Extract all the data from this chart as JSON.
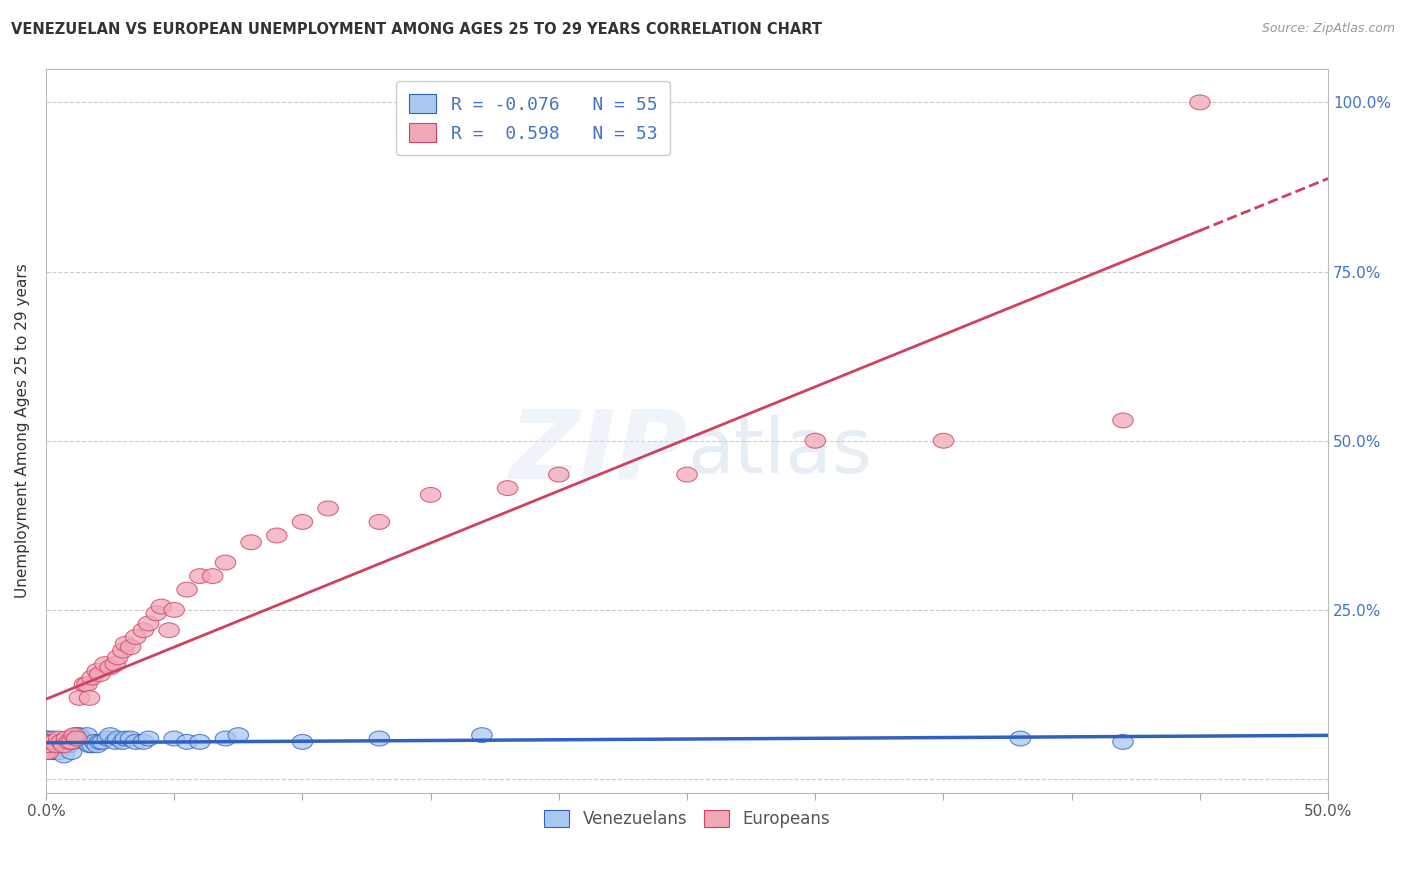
{
  "title": "VENEZUELAN VS EUROPEAN UNEMPLOYMENT AMONG AGES 25 TO 29 YEARS CORRELATION CHART",
  "source": "Source: ZipAtlas.com",
  "ylabel": "Unemployment Among Ages 25 to 29 years",
  "xlim": [
    0.0,
    0.5
  ],
  "ylim": [
    -0.02,
    1.05
  ],
  "xticks": [
    0.0,
    0.05,
    0.1,
    0.15,
    0.2,
    0.25,
    0.3,
    0.35,
    0.4,
    0.45,
    0.5
  ],
  "xticklabels": [
    "0.0%",
    "",
    "",
    "",
    "",
    "",
    "",
    "",
    "",
    "",
    "50.0%"
  ],
  "ytick_positions": [
    0.0,
    0.25,
    0.5,
    0.75,
    1.0
  ],
  "yticklabels": [
    "",
    "25.0%",
    "50.0%",
    "75.0%",
    "100.0%"
  ],
  "legend_labels": [
    "Venezuelans",
    "Europeans"
  ],
  "venezuelan_color": "#a8c8f0",
  "european_color": "#f0a8b8",
  "venezuelan_R": -0.076,
  "venezuelan_N": 55,
  "european_R": 0.598,
  "european_N": 53,
  "background_color": "#ffffff",
  "grid_color": "#cccccc",
  "venezuelan_line_color": "#3060c0",
  "european_line_color": "#d04060",
  "venezuelan_x": [
    0.0,
    0.0,
    0.0,
    0.0,
    0.001,
    0.001,
    0.001,
    0.002,
    0.002,
    0.003,
    0.003,
    0.003,
    0.004,
    0.005,
    0.005,
    0.006,
    0.007,
    0.007,
    0.008,
    0.009,
    0.009,
    0.01,
    0.01,
    0.011,
    0.012,
    0.013,
    0.014,
    0.015,
    0.016,
    0.017,
    0.018,
    0.019,
    0.02,
    0.021,
    0.022,
    0.024,
    0.025,
    0.027,
    0.028,
    0.03,
    0.031,
    0.033,
    0.035,
    0.038,
    0.04,
    0.05,
    0.055,
    0.06,
    0.07,
    0.075,
    0.1,
    0.13,
    0.17,
    0.38,
    0.42
  ],
  "venezuelan_y": [
    0.04,
    0.05,
    0.055,
    0.06,
    0.04,
    0.05,
    0.06,
    0.04,
    0.055,
    0.04,
    0.05,
    0.06,
    0.055,
    0.04,
    0.05,
    0.055,
    0.035,
    0.05,
    0.055,
    0.05,
    0.06,
    0.04,
    0.055,
    0.06,
    0.065,
    0.065,
    0.06,
    0.055,
    0.065,
    0.05,
    0.05,
    0.055,
    0.05,
    0.055,
    0.055,
    0.06,
    0.065,
    0.055,
    0.06,
    0.055,
    0.06,
    0.06,
    0.055,
    0.055,
    0.06,
    0.06,
    0.055,
    0.055,
    0.06,
    0.065,
    0.055,
    0.06,
    0.065,
    0.06,
    0.055
  ],
  "european_x": [
    0.0,
    0.0,
    0.001,
    0.001,
    0.002,
    0.003,
    0.004,
    0.005,
    0.006,
    0.007,
    0.008,
    0.009,
    0.01,
    0.011,
    0.012,
    0.013,
    0.015,
    0.016,
    0.017,
    0.018,
    0.02,
    0.021,
    0.023,
    0.025,
    0.027,
    0.028,
    0.03,
    0.031,
    0.033,
    0.035,
    0.038,
    0.04,
    0.043,
    0.045,
    0.048,
    0.05,
    0.055,
    0.06,
    0.065,
    0.07,
    0.08,
    0.09,
    0.1,
    0.11,
    0.13,
    0.15,
    0.18,
    0.2,
    0.25,
    0.3,
    0.35,
    0.42,
    0.45
  ],
  "european_y": [
    0.04,
    0.055,
    0.04,
    0.05,
    0.055,
    0.055,
    0.05,
    0.06,
    0.055,
    0.05,
    0.06,
    0.055,
    0.055,
    0.065,
    0.06,
    0.12,
    0.14,
    0.14,
    0.12,
    0.15,
    0.16,
    0.155,
    0.17,
    0.165,
    0.17,
    0.18,
    0.19,
    0.2,
    0.195,
    0.21,
    0.22,
    0.23,
    0.245,
    0.255,
    0.22,
    0.25,
    0.28,
    0.3,
    0.3,
    0.32,
    0.35,
    0.36,
    0.38,
    0.4,
    0.38,
    0.42,
    0.43,
    0.45,
    0.45,
    0.5,
    0.5,
    0.53,
    1.0
  ]
}
